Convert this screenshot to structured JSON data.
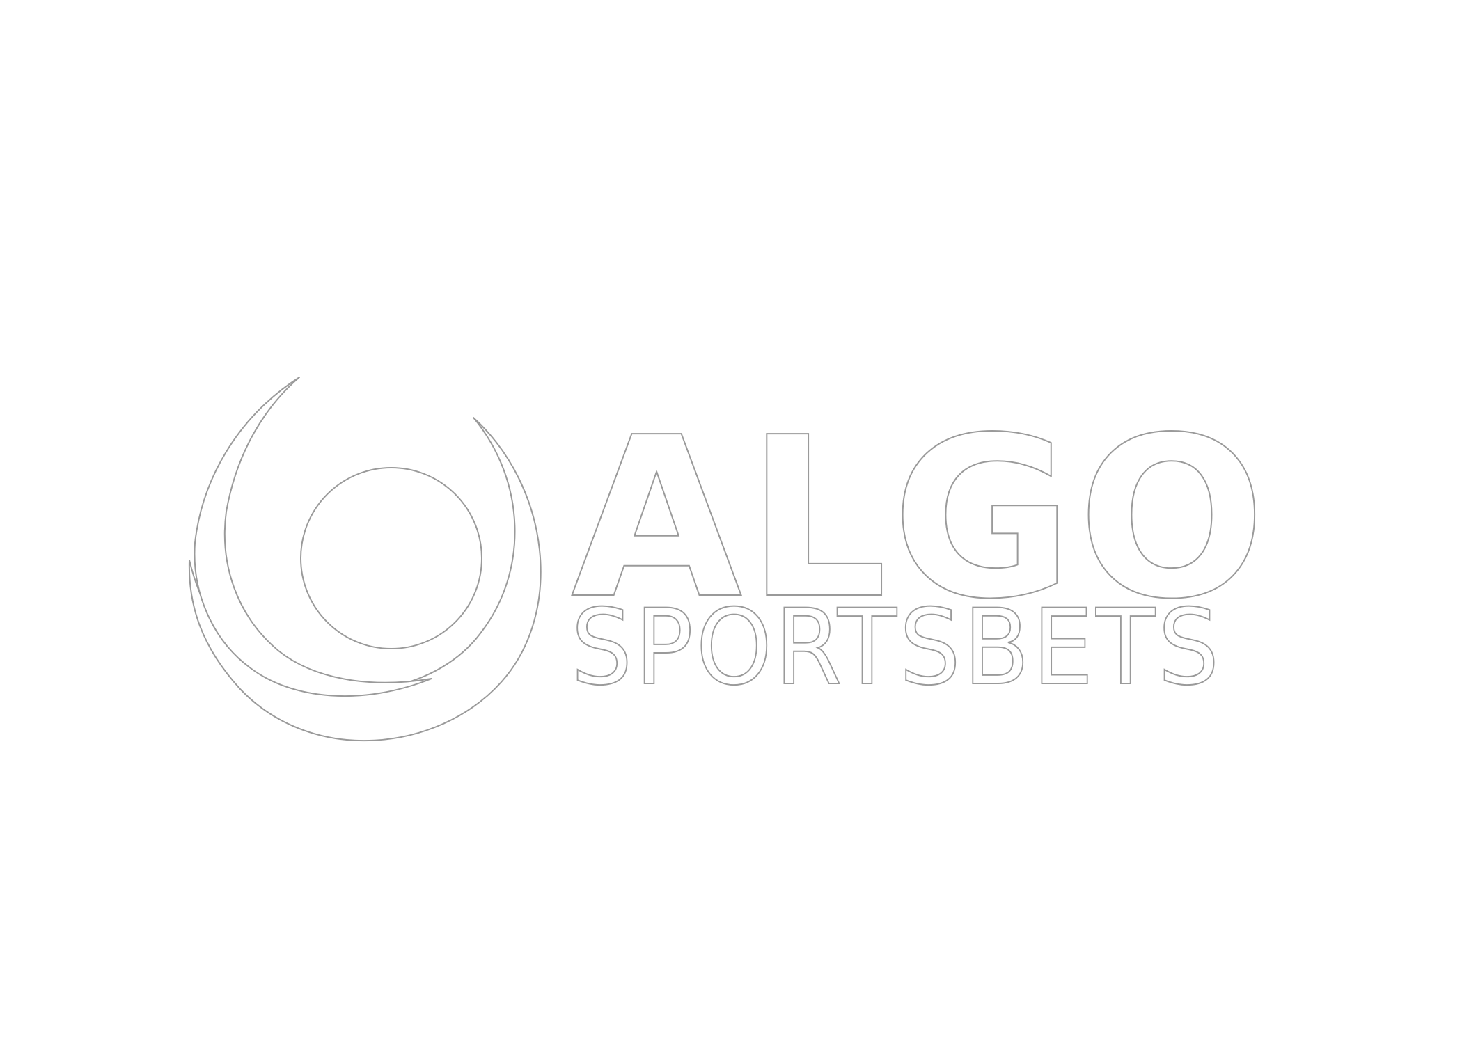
{
  "logo": {
    "primary_text": "ALGO",
    "secondary_text": "SPORTSBETS",
    "icon": "swirl-ball-icon",
    "fill_color": "#ffffff",
    "outline_color": "#9a9a9a",
    "background_color": "#ffffff"
  }
}
